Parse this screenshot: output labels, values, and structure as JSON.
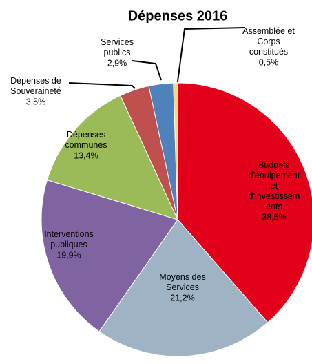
{
  "chart_data": {
    "type": "pie",
    "title": "Dépenses 2016",
    "categories": [
      "Budgets\nd'équipement\net\nd'investissem\nents",
      "Moyens des\nServices",
      "Interventions\npubliques",
      "Dépenses\ncommunes",
      "Dépenses de\nSouveraineté",
      "Services\npublics",
      "Assemblée et\nCorps\nconstitués"
    ],
    "values": [
      38.5,
      21.2,
      19.9,
      13.4,
      3.5,
      2.9,
      0.5
    ],
    "value_labels": [
      "38,5%",
      "21,2%",
      "19,9%",
      "13,4%",
      "3,5%",
      "2,9%",
      "0,5%"
    ],
    "colors": [
      "#e2001a",
      "#9fb3c4",
      "#8064a2",
      "#9bbb59",
      "#c0504d",
      "#4f81bd",
      "#f3d88a"
    ]
  }
}
